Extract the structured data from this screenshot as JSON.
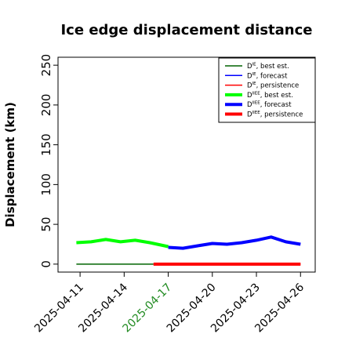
{
  "chart_data": {
    "type": "line",
    "title": "Ice edge displacement distance",
    "xlabel": "",
    "ylabel": "Displacement (km)",
    "ylim": [
      -10,
      260
    ],
    "yticks": [
      0,
      50,
      100,
      150,
      200,
      250
    ],
    "xlim": [
      "2025-04-09T12:00",
      "2025-04-27T00:00"
    ],
    "xticks": [
      {
        "date": "2025-04-11",
        "label": "2025-04-11",
        "color": "#000000"
      },
      {
        "date": "2025-04-14",
        "label": "2025-04-14",
        "color": "#000000"
      },
      {
        "date": "2025-04-17",
        "label": "2025-04-17",
        "color": "#228b22"
      },
      {
        "date": "2025-04-20",
        "label": "2025-04-20",
        "color": "#000000"
      },
      {
        "date": "2025-04-23",
        "label": "2025-04-23",
        "color": "#000000"
      },
      {
        "date": "2025-04-26",
        "label": "2025-04-26",
        "color": "#000000"
      }
    ],
    "grid": false,
    "legend_position": "top-right",
    "series": [
      {
        "name": "D^IE, best est.",
        "color": "#006400",
        "width": 1.5,
        "x": [
          "2025-04-10T18:00",
          "2025-04-16T00:00"
        ],
        "y": [
          0,
          0
        ]
      },
      {
        "name": "D^IE, forecast",
        "color": "#0000ff",
        "width": 1.5,
        "x": [],
        "y": []
      },
      {
        "name": "D^IE, persistence",
        "color": "#ff0000",
        "width": 1.5,
        "x": [
          "2025-04-16T00:00",
          "2025-04-26T00:00"
        ],
        "y": [
          0,
          0
        ]
      },
      {
        "name": "D^IIEE, best est.",
        "color": "#00ff00",
        "width": 4,
        "x": [
          "2025-04-10T18:00",
          "2025-04-11T18:00",
          "2025-04-12T18:00",
          "2025-04-13T18:00",
          "2025-04-14T18:00",
          "2025-04-15T18:00",
          "2025-04-16T18:00",
          "2025-04-17T00:00"
        ],
        "y": [
          27,
          28,
          31,
          28,
          30,
          27,
          23,
          22
        ]
      },
      {
        "name": "D^IIEE, forecast",
        "color": "#0000ff",
        "width": 4,
        "x": [
          "2025-04-17T00:00",
          "2025-04-18T00:00",
          "2025-04-19T00:00",
          "2025-04-20T00:00",
          "2025-04-21T00:00",
          "2025-04-22T00:00",
          "2025-04-23T00:00",
          "2025-04-24T00:00",
          "2025-04-25T00:00",
          "2025-04-26T00:00"
        ],
        "y": [
          21,
          20,
          23,
          26,
          25,
          27,
          30,
          34,
          28,
          25
        ]
      },
      {
        "name": "D^IIEE, persistence",
        "color": "#ff0000",
        "width": 4,
        "x": [
          "2025-04-16T00:00",
          "2025-04-26T00:00"
        ],
        "y": [
          0,
          0
        ]
      }
    ],
    "legend": [
      {
        "base": "D",
        "sup": "IE",
        "text": ", best est.",
        "color": "#006400",
        "width": 1.5
      },
      {
        "base": "D",
        "sup": "IE",
        "text": ", forecast",
        "color": "#0000ff",
        "width": 1.5
      },
      {
        "base": "D",
        "sup": "IE",
        "text": ", persistence",
        "color": "#ff0000",
        "width": 1.5
      },
      {
        "base": "D",
        "sup": "IIEE",
        "text": ", best est.",
        "color": "#00ff00",
        "width": 4
      },
      {
        "base": "D",
        "sup": "IIEE",
        "text": ", forecast",
        "color": "#0000ff",
        "width": 4
      },
      {
        "base": "D",
        "sup": "IIEE",
        "text": ", persistence",
        "color": "#ff0000",
        "width": 4
      }
    ]
  }
}
